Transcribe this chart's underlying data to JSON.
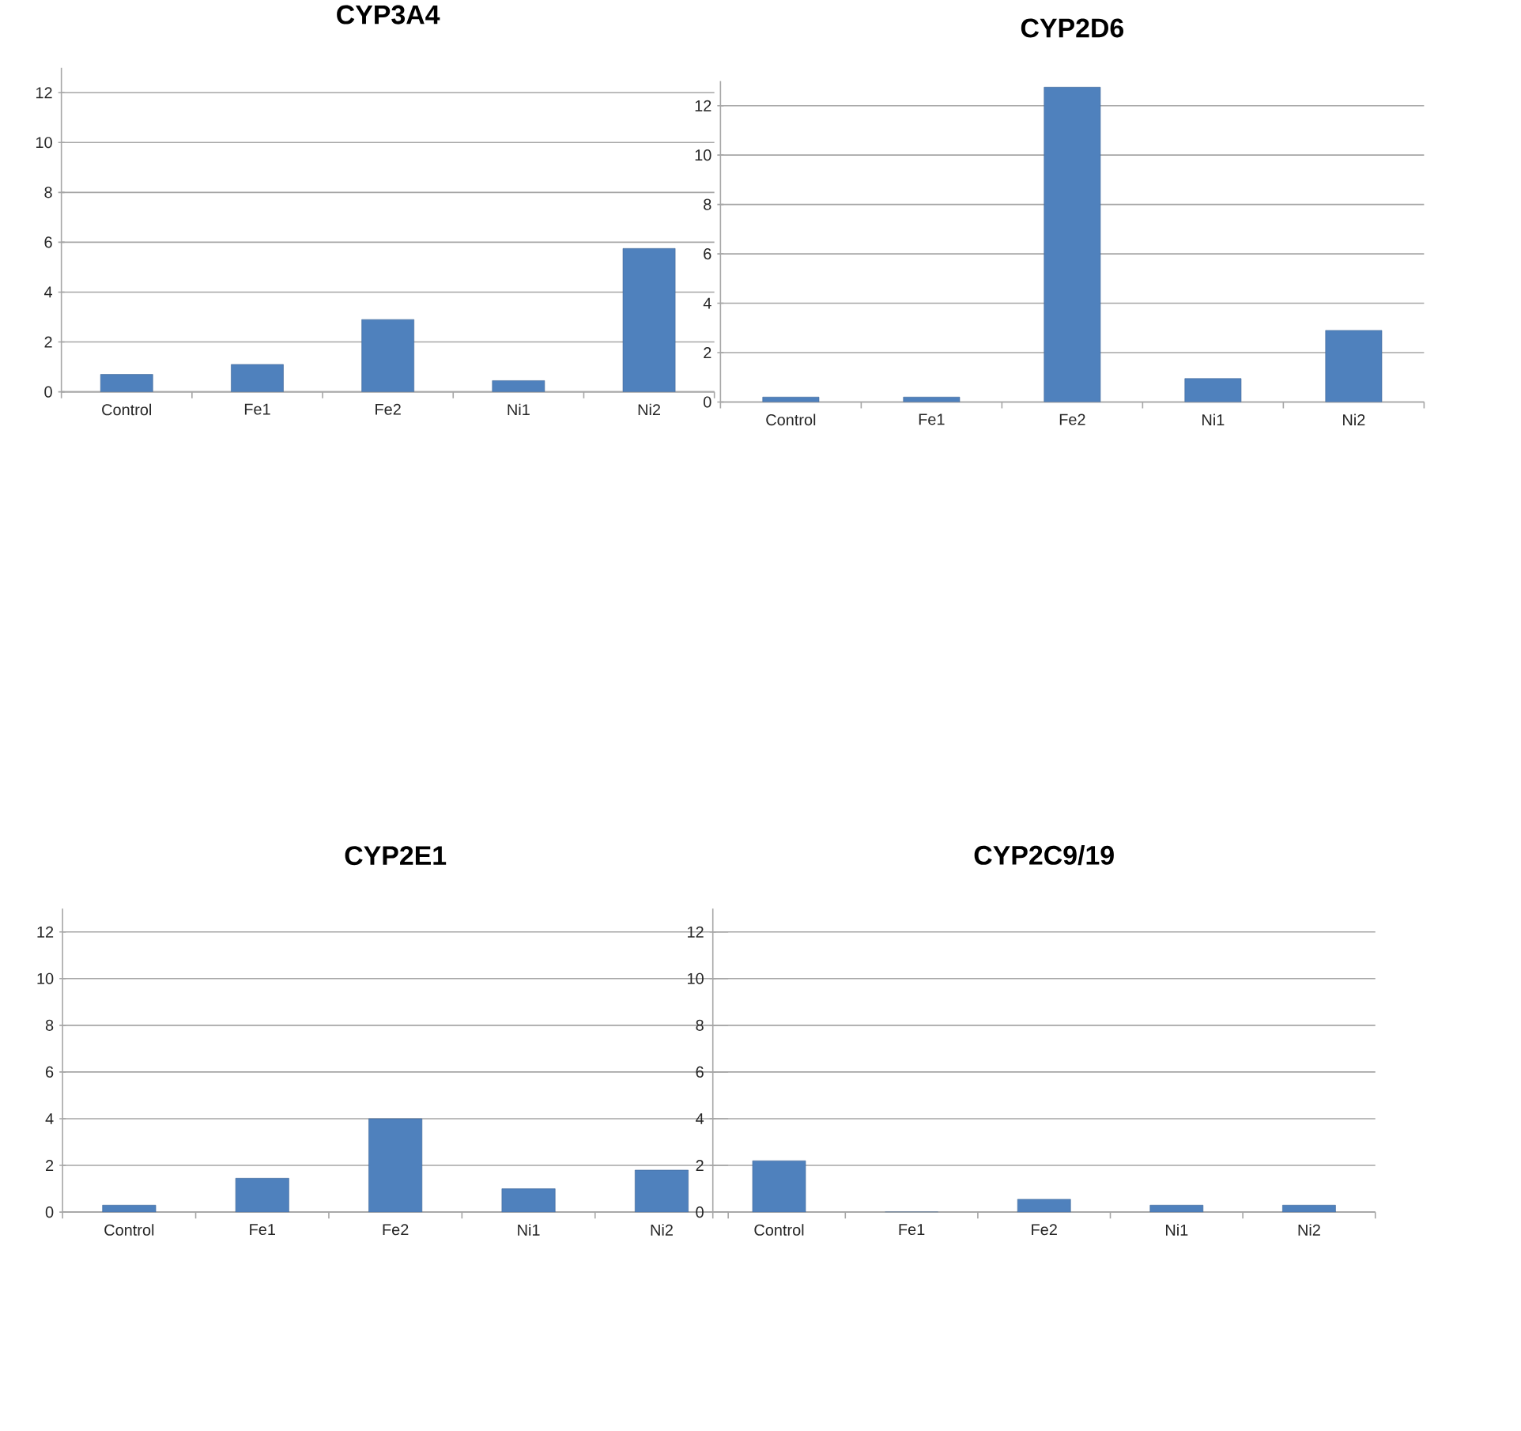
{
  "chart_data": [
    {
      "type": "bar",
      "title": "CYP3A4",
      "categories": [
        "Control",
        "Fe1",
        "Fe2",
        "Ni1",
        "Ni2"
      ],
      "values": [
        0.7,
        1.1,
        2.9,
        0.45,
        5.75
      ],
      "color": "#4f81bd",
      "ylim": [
        0,
        13
      ],
      "yticks": [
        0,
        2,
        4,
        6,
        8,
        10,
        12
      ],
      "grid": "y"
    },
    {
      "type": "bar",
      "title": "CYP2D6",
      "categories": [
        "Control",
        "Fe1",
        "Fe2",
        "Ni1",
        "Ni2"
      ],
      "values": [
        0.2,
        0.2,
        12.75,
        0.95,
        2.9
      ],
      "color": "#4f81bd",
      "ylim": [
        0,
        13
      ],
      "yticks": [
        0,
        2,
        4,
        6,
        8,
        10,
        12
      ],
      "grid": "y"
    },
    {
      "type": "bar",
      "title": "CYP2E1",
      "categories": [
        "Control",
        "Fe1",
        "Fe2",
        "Ni1",
        "Ni2"
      ],
      "values": [
        0.3,
        1.45,
        4.0,
        1.0,
        1.8
      ],
      "color": "#4f81bd",
      "ylim": [
        0,
        13
      ],
      "yticks": [
        0,
        2,
        4,
        6,
        8,
        10,
        12
      ],
      "grid": "y"
    },
    {
      "type": "bar",
      "title": "CYP2C9/19",
      "categories": [
        "Control",
        "Fe1",
        "Fe2",
        "Ni1",
        "Ni2"
      ],
      "values": [
        2.2,
        0,
        0.55,
        0.3,
        0.3
      ],
      "color": "#4f81bd",
      "ylim": [
        0,
        13
      ],
      "yticks": [
        0,
        2,
        4,
        6,
        8,
        10,
        12
      ],
      "grid": "y"
    }
  ]
}
